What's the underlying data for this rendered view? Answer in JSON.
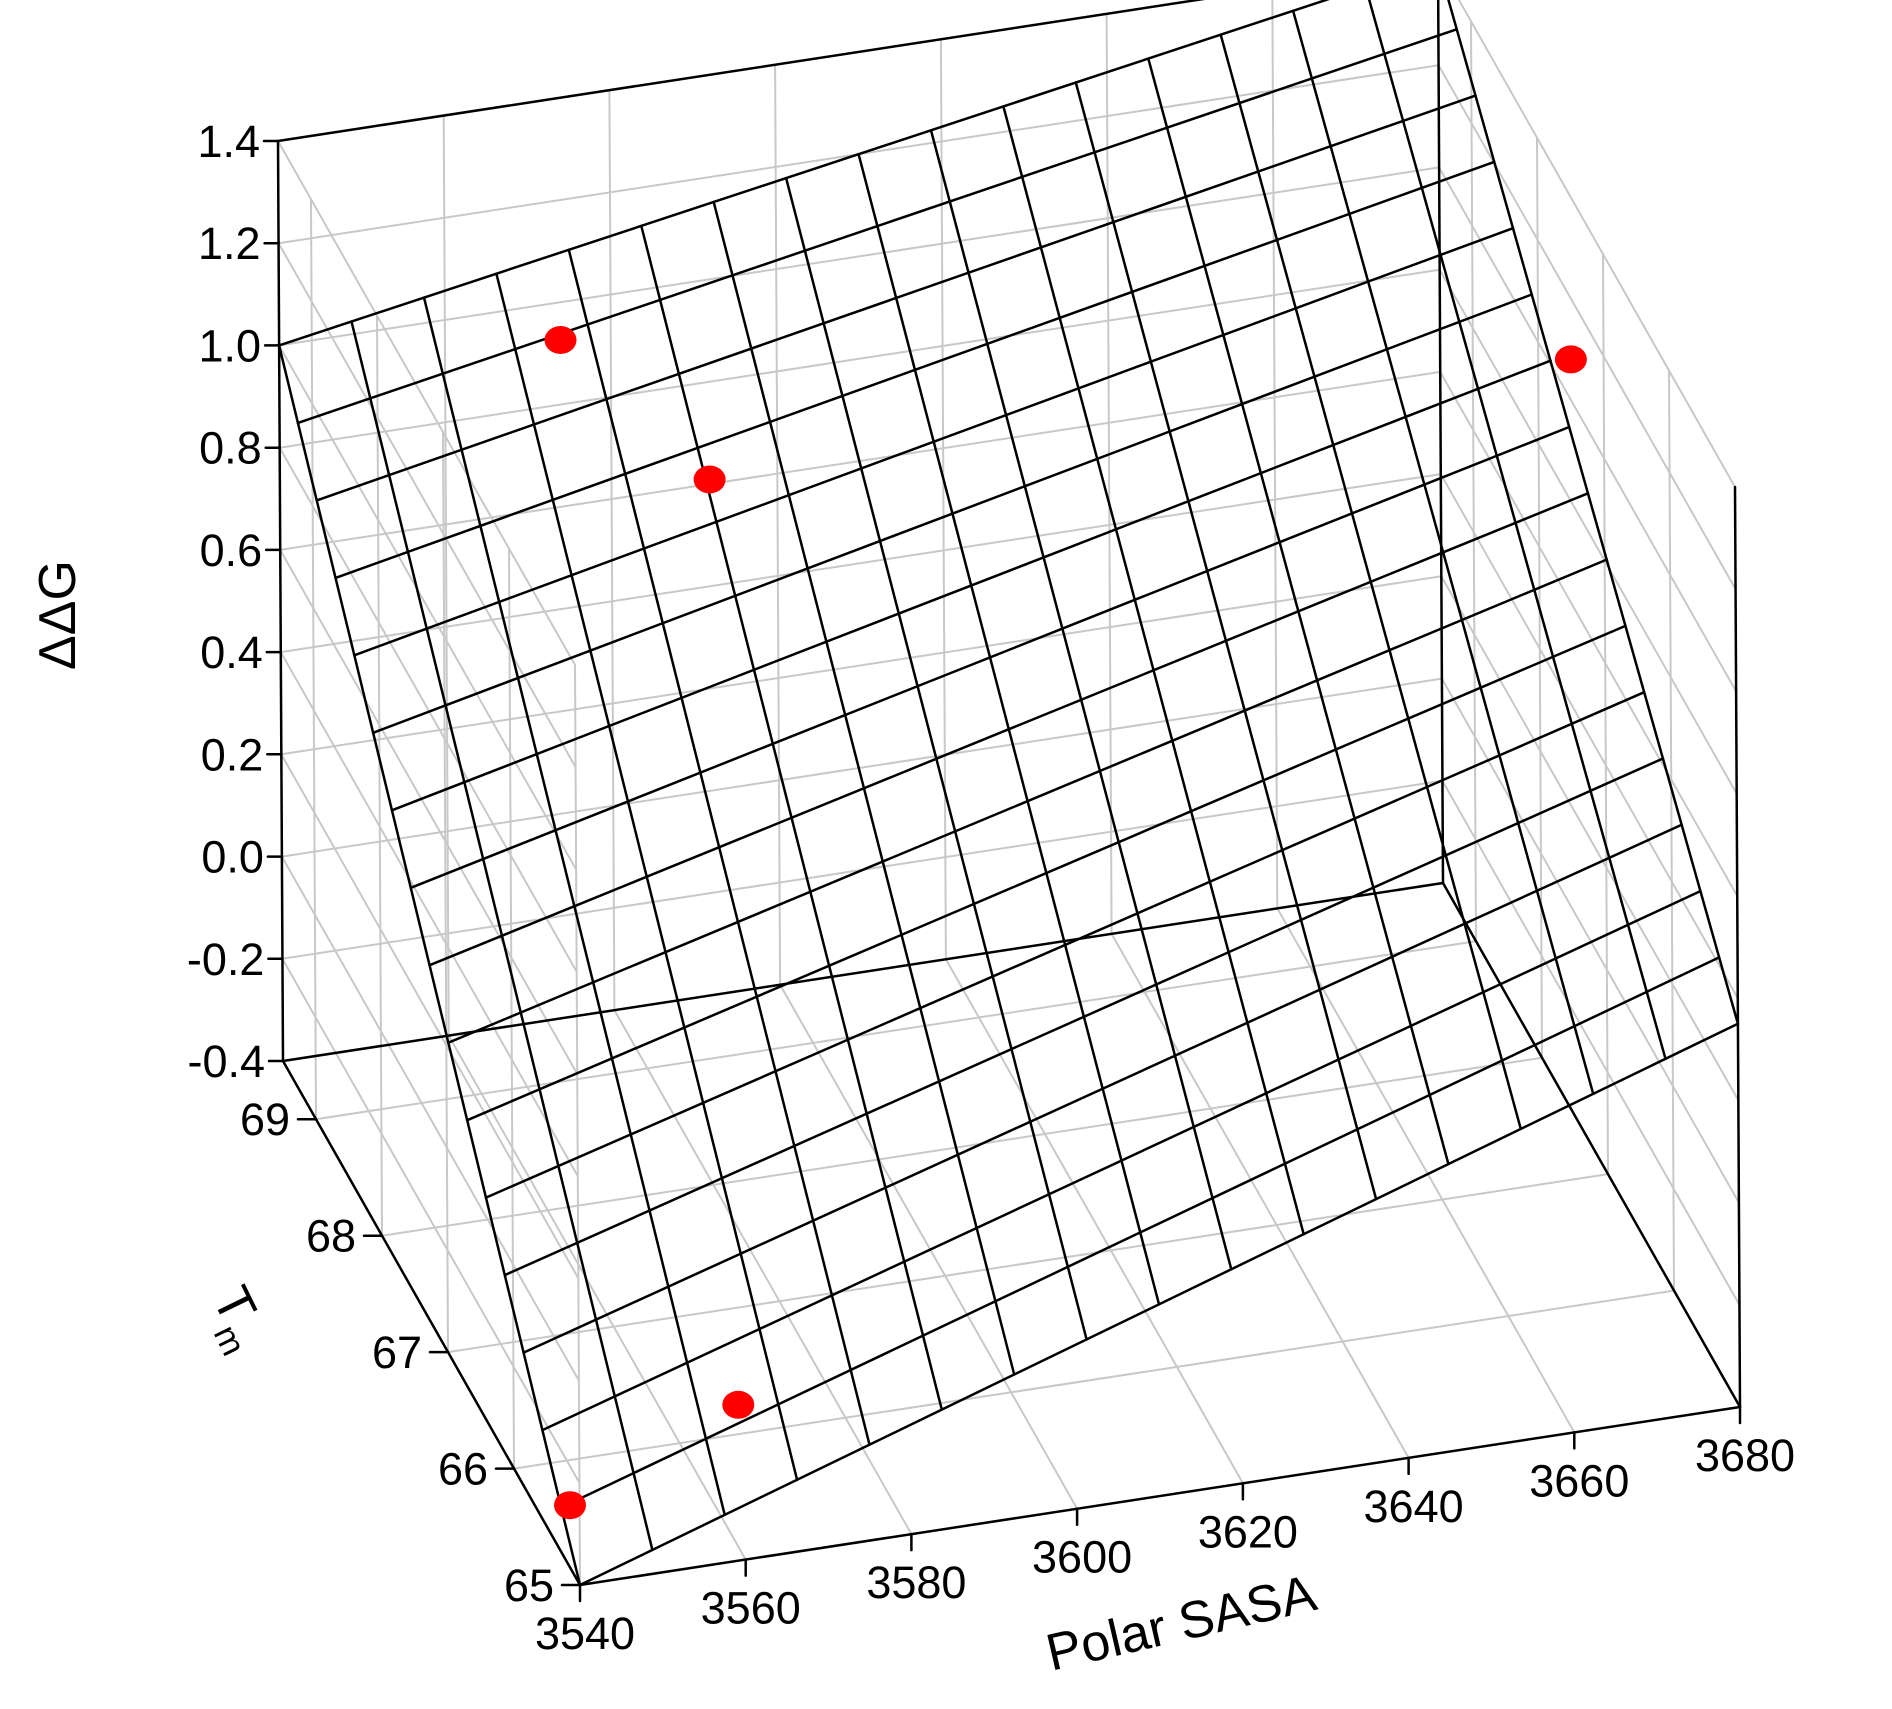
{
  "chart_data": {
    "type": "surface3d",
    "title": "",
    "axes": {
      "x": {
        "label": "Polar SASA",
        "ticks": [
          3540,
          3560,
          3580,
          3600,
          3620,
          3640,
          3660,
          3680
        ],
        "range": [
          3540,
          3680
        ]
      },
      "y": {
        "label": "T",
        "label_subscript": "m",
        "ticks": [
          65,
          66,
          67,
          68,
          69
        ],
        "range": [
          65,
          69.5
        ]
      },
      "z": {
        "label": "ΔΔG",
        "ticks": [
          "-0.4",
          "-0.2",
          "0.0",
          "0.2",
          "0.4",
          "0.6",
          "0.8",
          "1.0",
          "1.2",
          "1.4"
        ],
        "range": [
          -0.4,
          1.4
        ]
      }
    },
    "grid": true,
    "surface": {
      "description": "fitted plane",
      "x_range": [
        3540,
        3680
      ],
      "y_range": [
        65,
        69.5
      ],
      "grid_lines_x": 17,
      "grid_lines_y": 17,
      "corner_z": {
        "x_min_y_min": -0.4,
        "x_max_y_min": 0.35,
        "x_min_y_max": 1.0,
        "x_max_y_max": 1.4
      },
      "color": "#000000"
    },
    "points": [
      {
        "x": 3542,
        "y": 65.4,
        "z": -0.34
      },
      {
        "x": 3560,
        "y": 65.1,
        "z": -0.12
      },
      {
        "x": 3570,
        "y": 69.0,
        "z": 1.05
      },
      {
        "x": 3580,
        "y": 68.0,
        "z": 0.98
      },
      {
        "x": 3680,
        "y": 67.5,
        "z": 1.08
      }
    ],
    "point_color": "#ff0000",
    "grid_color": "#c8c8c8"
  }
}
